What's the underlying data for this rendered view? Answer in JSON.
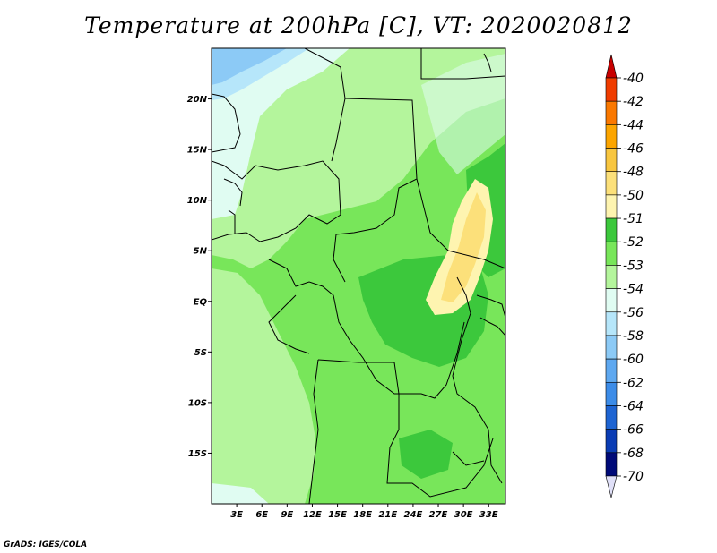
{
  "title": "Temperature at 200hPa [C], VT: 2020020812",
  "credit": "GrADS: IGES/COLA",
  "map": {
    "lon_range": [
      0,
      35
    ],
    "lat_range": [
      -20,
      25
    ],
    "lat_ticks": [
      {
        "value": 20,
        "label": "20N"
      },
      {
        "value": 15,
        "label": "15N"
      },
      {
        "value": 10,
        "label": "10N"
      },
      {
        "value": 5,
        "label": "5N"
      },
      {
        "value": 0,
        "label": "EQ"
      },
      {
        "value": -5,
        "label": "5S"
      },
      {
        "value": -10,
        "label": "10S"
      },
      {
        "value": -15,
        "label": "15S"
      }
    ],
    "lon_ticks": [
      {
        "value": 3,
        "label": "3E"
      },
      {
        "value": 6,
        "label": "6E"
      },
      {
        "value": 9,
        "label": "9E"
      },
      {
        "value": 12,
        "label": "12E"
      },
      {
        "value": 15,
        "label": "15E"
      },
      {
        "value": 18,
        "label": "18E"
      },
      {
        "value": 21,
        "label": "21E"
      },
      {
        "value": 24,
        "label": "24E"
      },
      {
        "value": 27,
        "label": "27E"
      },
      {
        "value": 30,
        "label": "30E"
      },
      {
        "value": 33,
        "label": "33E"
      }
    ]
  },
  "colorbar": {
    "levels": [
      {
        "label": "-40",
        "color": "#c80000"
      },
      {
        "label": "-42",
        "color": "#f03c00"
      },
      {
        "label": "-44",
        "color": "#fa7800"
      },
      {
        "label": "-46",
        "color": "#fca500"
      },
      {
        "label": "-48",
        "color": "#f8c640"
      },
      {
        "label": "-50",
        "color": "#fce07a"
      },
      {
        "label": "-51",
        "color": "#fef4b0"
      },
      {
        "label": "-52",
        "color": "#3cc83c"
      },
      {
        "label": "-53",
        "color": "#78e65a"
      },
      {
        "label": "-54",
        "color": "#b4f59c"
      },
      {
        "label": "-56",
        "color": "#e0fcf2"
      },
      {
        "label": "-58",
        "color": "#b6e6fa"
      },
      {
        "label": "-60",
        "color": "#8ccaf6"
      },
      {
        "label": "-62",
        "color": "#5ea8f0"
      },
      {
        "label": "-64",
        "color": "#3c8ce8"
      },
      {
        "label": "-66",
        "color": "#1e64d2"
      },
      {
        "label": "-68",
        "color": "#0a3cb4"
      },
      {
        "label": "-70",
        "color": "#000a78"
      }
    ],
    "under_color": "#e0e0f8"
  }
}
